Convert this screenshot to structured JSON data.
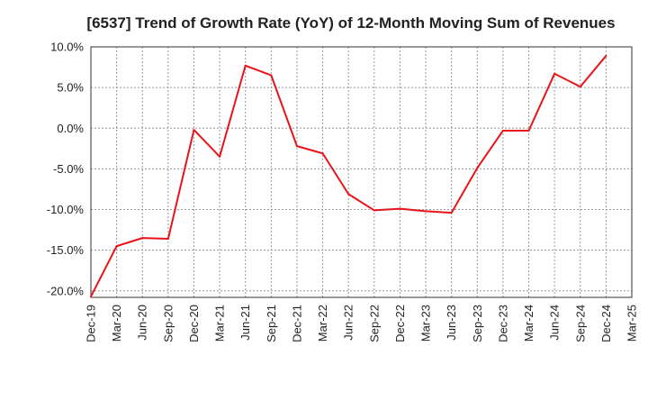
{
  "chart_data": {
    "type": "line",
    "title": "[6537]  Trend of Growth Rate (YoY) of 12-Month Moving Sum of Revenues",
    "xlabel": "",
    "ylabel": "",
    "x_tick_labels": [
      "Dec-19",
      "Mar-20",
      "Jun-20",
      "Sep-20",
      "Dec-20",
      "Mar-21",
      "Jun-21",
      "Sep-21",
      "Dec-21",
      "Mar-22",
      "Jun-22",
      "Sep-22",
      "Dec-22",
      "Mar-23",
      "Jun-23",
      "Sep-23",
      "Dec-23",
      "Mar-24",
      "Jun-24",
      "Sep-24",
      "Dec-24",
      "Mar-25"
    ],
    "y_tick_labels": [
      "10.0%",
      "5.0%",
      "0.0%",
      "-5.0%",
      "-10.0%",
      "-15.0%",
      "-20.0%"
    ],
    "y_ticks": [
      10,
      5,
      0,
      -5,
      -10,
      -15,
      -20
    ],
    "ylim": [
      -20.8,
      10.0
    ],
    "grid": true,
    "series": [
      {
        "color": "#e8141a",
        "values": [
          -20.7,
          -14.5,
          -13.5,
          -13.6,
          -0.2,
          -3.5,
          7.7,
          6.5,
          -2.2,
          -3.1,
          -8.1,
          -10.1,
          -9.9,
          -10.2,
          -10.4,
          -4.9,
          -0.3,
          -0.3,
          6.7,
          5.1,
          8.9
        ]
      }
    ]
  }
}
